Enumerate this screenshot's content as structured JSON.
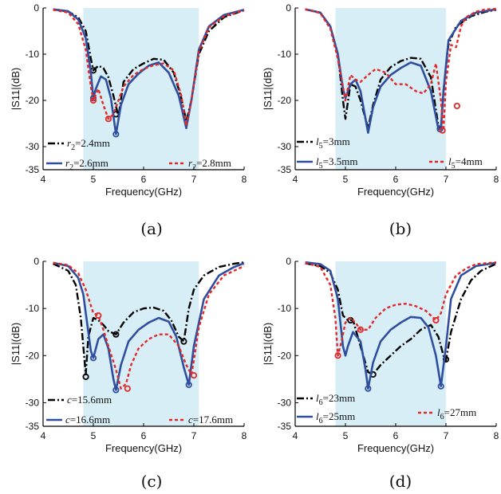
{
  "colors": {
    "highlight": "#d8eef7",
    "black": "#000000",
    "blue": "#2f4e9e",
    "red": "#e02a2a"
  },
  "chart_data": [
    {
      "type": "line",
      "panel_label": "(a)",
      "xlabel": "Frequency(GHz)",
      "ylabel": "|S11|(dB)",
      "xlim": [
        4,
        8
      ],
      "ylim": [
        -35,
        0
      ],
      "xticks": [
        4,
        5,
        6,
        7,
        8
      ],
      "yticks": [
        0,
        -10,
        -20,
        -30,
        -35
      ],
      "highlight_x": [
        4.8,
        7.1
      ],
      "series": [
        {
          "prefix": "r",
          "sub": "2",
          "value": "=2.4mm",
          "color": "black",
          "style": "dashdot",
          "x": [
            4.2,
            4.5,
            4.7,
            4.85,
            4.95,
            5.0,
            5.1,
            5.2,
            5.3,
            5.4,
            5.5,
            5.6,
            5.8,
            6.0,
            6.2,
            6.4,
            6.6,
            6.75,
            6.85,
            6.95,
            7.1,
            7.3,
            7.6,
            8.0
          ],
          "y": [
            -0.3,
            -0.8,
            -2.0,
            -5.0,
            -11,
            -13.5,
            -12.5,
            -13.0,
            -15,
            -19,
            -23.5,
            -16,
            -13.2,
            -12.0,
            -11.0,
            -11.2,
            -14,
            -19.5,
            -24.5,
            -20,
            -10,
            -5,
            -2,
            -0.5
          ],
          "markers": [
            [
              5.0,
              -13.5
            ],
            [
              5.45,
              -23.0
            ]
          ]
        },
        {
          "prefix": "r",
          "sub": "2",
          "value": "=2.6mm",
          "color": "blue",
          "style": "solid",
          "x": [
            4.2,
            4.5,
            4.7,
            4.85,
            4.95,
            5.0,
            5.05,
            5.15,
            5.25,
            5.35,
            5.45,
            5.55,
            5.7,
            5.9,
            6.1,
            6.3,
            6.5,
            6.7,
            6.85,
            6.95,
            7.1,
            7.3,
            7.6,
            8.0
          ],
          "y": [
            -0.3,
            -0.7,
            -2.5,
            -6.5,
            -14,
            -19.5,
            -17.5,
            -14.8,
            -15.5,
            -19.5,
            -27.3,
            -21,
            -16.5,
            -14.2,
            -12.5,
            -11.8,
            -14,
            -19,
            -26,
            -20,
            -9,
            -4,
            -1.5,
            -0.4
          ],
          "markers": [
            [
              5.0,
              -19.5
            ],
            [
              5.45,
              -27.3
            ]
          ]
        },
        {
          "prefix": "r",
          "sub": "2",
          "value": "=2.8mm",
          "color": "red",
          "style": "dotted",
          "x": [
            4.2,
            4.5,
            4.7,
            4.85,
            4.95,
            5.0,
            5.1,
            5.2,
            5.3,
            5.4,
            5.5,
            5.6,
            5.8,
            6.0,
            6.2,
            6.4,
            6.6,
            6.75,
            6.85,
            6.95,
            7.1,
            7.3,
            7.6,
            8.0
          ],
          "y": [
            -0.4,
            -1.0,
            -3.5,
            -9.0,
            -17,
            -20,
            -17.5,
            -21,
            -24,
            -23,
            -20,
            -17,
            -14.5,
            -13.2,
            -12.4,
            -12.0,
            -13.5,
            -19,
            -25.5,
            -20,
            -9.5,
            -4.2,
            -1.8,
            -0.5
          ],
          "markers": [
            [
              5.0,
              -20.0
            ],
            [
              5.3,
              -24.0
            ]
          ]
        }
      ]
    },
    {
      "type": "line",
      "panel_label": "(b)",
      "xlabel": "Frequency(GHz)",
      "ylabel": "|S11|(dB)",
      "xlim": [
        4,
        8
      ],
      "ylim": [
        -35,
        0
      ],
      "xticks": [
        4,
        5,
        6,
        7,
        8
      ],
      "yticks": [
        0,
        -10,
        -20,
        -30,
        -35
      ],
      "highlight_x": [
        4.8,
        7.0
      ],
      "series": [
        {
          "prefix": "l",
          "sub": "5",
          "value": "=3mm",
          "color": "black",
          "style": "dashdot",
          "x": [
            4.2,
            4.5,
            4.7,
            4.85,
            4.95,
            5.0,
            5.1,
            5.2,
            5.3,
            5.4,
            5.45,
            5.55,
            5.7,
            5.9,
            6.1,
            6.3,
            6.5,
            6.7,
            6.85,
            6.9,
            6.95,
            7.05,
            7.2,
            7.5,
            7.8,
            8.0
          ],
          "y": [
            -0.3,
            -1.0,
            -4.0,
            -10.0,
            -20,
            -24,
            -16.5,
            -17,
            -20,
            -24,
            -26,
            -21,
            -15.5,
            -12.8,
            -11.5,
            -10.8,
            -11.0,
            -15,
            -25.5,
            -26,
            -18,
            -8,
            -4,
            -1.8,
            -0.8,
            -0.4
          ],
          "markers": []
        },
        {
          "prefix": "l",
          "sub": "5",
          "value": "=3.5mm",
          "color": "blue",
          "style": "solid",
          "x": [
            4.2,
            4.5,
            4.7,
            4.85,
            4.95,
            5.0,
            5.1,
            5.2,
            5.3,
            5.4,
            5.45,
            5.55,
            5.7,
            5.9,
            6.1,
            6.3,
            6.5,
            6.7,
            6.85,
            6.9,
            6.95,
            7.05,
            7.3,
            7.6,
            8.0
          ],
          "y": [
            -0.3,
            -1.0,
            -4.0,
            -10.0,
            -17.5,
            -19.5,
            -16.5,
            -15.5,
            -18,
            -24,
            -27,
            -21.5,
            -17,
            -14.5,
            -13,
            -11.8,
            -12.5,
            -18,
            -26.2,
            -26.2,
            -18,
            -7,
            -2.8,
            -1,
            -0.3
          ],
          "markers": [
            [
              6.88,
              -26.2
            ]
          ]
        },
        {
          "prefix": "l",
          "sub": "5",
          "value": "=4mm",
          "color": "red",
          "style": "dotted",
          "x": [
            4.2,
            4.5,
            4.7,
            4.85,
            4.95,
            5.0,
            5.1,
            5.2,
            5.3,
            5.45,
            5.6,
            5.8,
            6.0,
            6.2,
            6.4,
            6.55,
            6.7,
            6.8,
            6.9,
            6.95,
            7.0,
            7.1,
            7.2,
            7.3,
            7.4,
            7.6,
            7.8,
            8.0
          ],
          "y": [
            -0.3,
            -1.1,
            -4.5,
            -11,
            -17,
            -20,
            -14.5,
            -15.5,
            -16,
            -14.5,
            -13.2,
            -14,
            -16.5,
            -16.5,
            -18,
            -18.5,
            -16.5,
            -12,
            -20,
            -26.5,
            -16,
            -8,
            -8.5,
            -4,
            -2,
            -0.8,
            -0.3,
            -0.2
          ],
          "markers": [
            [
              6.93,
              -26.5
            ],
            [
              7.22,
              -21.2
            ]
          ]
        }
      ]
    },
    {
      "type": "line",
      "panel_label": "(c)",
      "xlabel": "Frequency(GHz)",
      "ylabel": "|S11|(dB)",
      "xlim": [
        4,
        8
      ],
      "ylim": [
        -35,
        0
      ],
      "xticks": [
        4,
        5,
        6,
        7,
        8
      ],
      "yticks": [
        0,
        -10,
        -20,
        -30,
        -35
      ],
      "highlight_x": [
        4.8,
        7.1
      ],
      "series": [
        {
          "prefix": "c",
          "sub": "",
          "value": "=15.6mm",
          "color": "black",
          "style": "dashdot",
          "x": [
            4.2,
            4.5,
            4.65,
            4.75,
            4.8,
            4.85,
            4.9,
            5.0,
            5.1,
            5.2,
            5.3,
            5.45,
            5.6,
            5.8,
            6.0,
            6.2,
            6.4,
            6.55,
            6.7,
            6.8,
            6.9,
            7.0,
            7.2,
            7.5,
            7.8,
            8.0
          ],
          "y": [
            -0.5,
            -2,
            -5,
            -12,
            -18,
            -24,
            -16,
            -12,
            -12.5,
            -13.5,
            -14.8,
            -15.5,
            -13,
            -10.8,
            -10,
            -9.8,
            -10.5,
            -12.5,
            -16,
            -17,
            -10,
            -6,
            -3,
            -1.2,
            -0.5,
            -0.2
          ],
          "markers": [
            [
              4.85,
              -24.5
            ],
            [
              5.45,
              -15.5
            ],
            [
              6.8,
              -17.0
            ]
          ]
        },
        {
          "prefix": "c",
          "sub": "",
          "value": "=16.6mm",
          "color": "blue",
          "style": "solid",
          "x": [
            4.2,
            4.5,
            4.7,
            4.8,
            4.9,
            4.95,
            5.0,
            5.1,
            5.2,
            5.3,
            5.4,
            5.45,
            5.55,
            5.7,
            5.9,
            6.1,
            6.3,
            6.5,
            6.65,
            6.8,
            6.9,
            7.0,
            7.2,
            7.5,
            7.8,
            8.0
          ],
          "y": [
            -0.3,
            -1.0,
            -3.5,
            -7,
            -15,
            -19,
            -20.5,
            -16.5,
            -15.5,
            -18.5,
            -25,
            -27.3,
            -22,
            -17,
            -14.5,
            -13,
            -12,
            -12.8,
            -16,
            -22.5,
            -26.2,
            -18,
            -8,
            -3,
            -1.2,
            -0.4
          ],
          "markers": [
            [
              5.0,
              -20.5
            ],
            [
              5.45,
              -27.3
            ],
            [
              6.9,
              -26.2
            ]
          ]
        },
        {
          "prefix": "c",
          "sub": "",
          "value": "=17.6mm",
          "color": "red",
          "style": "dotted",
          "x": [
            4.2,
            4.5,
            4.7,
            4.85,
            5.0,
            5.1,
            5.2,
            5.3,
            5.45,
            5.55,
            5.65,
            5.75,
            5.9,
            6.1,
            6.3,
            6.5,
            6.7,
            6.85,
            6.95,
            7.0,
            7.1,
            7.3,
            7.6,
            8.0
          ],
          "y": [
            -0.3,
            -0.8,
            -2.5,
            -6,
            -11,
            -11.5,
            -14.5,
            -18,
            -23,
            -27,
            -26,
            -22,
            -18.5,
            -16.5,
            -15.5,
            -15.5,
            -18,
            -22,
            -24,
            -21,
            -14,
            -7,
            -3,
            -1
          ],
          "markers": [
            [
              5.1,
              -11.5
            ],
            [
              5.68,
              -27.0
            ],
            [
              7.0,
              -24.2
            ]
          ]
        }
      ]
    },
    {
      "type": "line",
      "panel_label": "(d)",
      "xlabel": "Frequency(GHz)",
      "ylabel": "|S11|(dB)",
      "xlim": [
        4,
        8
      ],
      "ylim": [
        -35,
        0
      ],
      "xticks": [
        4,
        5,
        6,
        7,
        8
      ],
      "yticks": [
        0,
        -10,
        -20,
        -30,
        -35
      ],
      "highlight_x": [
        4.8,
        7.0
      ],
      "series": [
        {
          "prefix": "l",
          "sub": "6",
          "value": "=23mm",
          "color": "black",
          "style": "dashdot",
          "x": [
            4.2,
            4.5,
            4.7,
            4.85,
            4.95,
            5.05,
            5.15,
            5.3,
            5.45,
            5.55,
            5.7,
            5.9,
            6.1,
            6.3,
            6.5,
            6.7,
            6.85,
            6.95,
            7.0,
            7.1,
            7.3,
            7.5,
            7.7,
            8.0
          ],
          "y": [
            -0.4,
            -1.0,
            -2.5,
            -6,
            -11.5,
            -12.5,
            -12.5,
            -18,
            -23.5,
            -24,
            -22,
            -20,
            -18,
            -16.5,
            -14.5,
            -13.5,
            -16,
            -20,
            -21,
            -15,
            -8,
            -4,
            -2,
            -0.5
          ],
          "markers": [
            [
              5.1,
              -12.5
            ],
            [
              5.55,
              -24.0
            ],
            [
              7.0,
              -20.8
            ]
          ]
        },
        {
          "prefix": "l",
          "sub": "6",
          "value": "=25mm",
          "color": "blue",
          "style": "solid",
          "x": [
            4.2,
            4.5,
            4.7,
            4.85,
            4.95,
            5.0,
            5.05,
            5.15,
            5.3,
            5.4,
            5.45,
            5.55,
            5.7,
            5.9,
            6.1,
            6.3,
            6.5,
            6.65,
            6.8,
            6.9,
            7.0,
            7.1,
            7.3,
            7.6,
            8.0
          ],
          "y": [
            -0.2,
            -0.6,
            -2,
            -8,
            -18,
            -20,
            -18,
            -15,
            -17,
            -23,
            -27,
            -21.5,
            -17,
            -14.5,
            -13,
            -11.8,
            -12,
            -14,
            -20,
            -26.5,
            -18,
            -8,
            -3,
            -1,
            -0.3
          ],
          "markers": [
            [
              5.45,
              -27.0
            ],
            [
              6.9,
              -26.5
            ]
          ]
        },
        {
          "prefix": "l",
          "sub": "6",
          "value": "=27mm",
          "color": "red",
          "style": "dotted",
          "x": [
            4.2,
            4.5,
            4.7,
            4.8,
            4.85,
            4.9,
            5.0,
            5.1,
            5.2,
            5.3,
            5.45,
            5.6,
            5.8,
            6.0,
            6.2,
            6.4,
            6.6,
            6.8,
            6.9,
            7.0,
            7.2,
            7.4,
            7.6,
            8.0
          ],
          "y": [
            -0.3,
            -1.2,
            -5,
            -12,
            -20,
            -18,
            -13,
            -12,
            -13,
            -14.5,
            -14.5,
            -12,
            -10,
            -9.2,
            -9,
            -9.5,
            -10.5,
            -12.5,
            -11,
            -7,
            -3,
            -1.5,
            -0.6,
            -0.2
          ],
          "markers": [
            [
              4.85,
              -20.0
            ],
            [
              5.3,
              -14.5
            ],
            [
              6.8,
              -12.5
            ]
          ]
        }
      ]
    }
  ]
}
